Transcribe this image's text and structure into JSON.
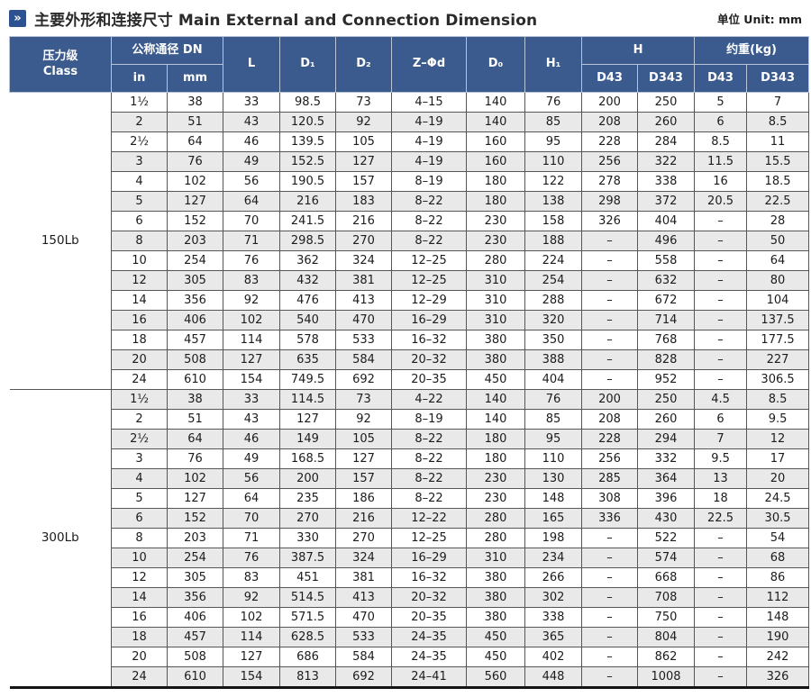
{
  "title": {
    "icon_glyph": "»",
    "text": "主要外形和连接尺寸 Main External and Connection Dimension",
    "unit": "单位 Unit: mm"
  },
  "colors": {
    "header_bg": "#3b5b8e",
    "icon_bg": "#2e5191",
    "stripe": "#e9e9e9",
    "grid_line": "#55565a",
    "bottom_border": "#141414"
  },
  "table": {
    "header": {
      "class_label": "压力级\nClass",
      "dn_label": "公称通径 DN",
      "in": "in",
      "mm": "mm",
      "l": "L",
      "d1": "D₁",
      "d2": "D₂",
      "z_phi_d": "Z–Φd",
      "d0": "D₀",
      "h1": "H₁",
      "h_group": "H",
      "weight_group": "约重(kg)",
      "d43": "D43",
      "d343": "D343"
    },
    "column_keys": [
      "in",
      "mm",
      "L",
      "D1",
      "D2",
      "Z-phi-d",
      "D0",
      "H1",
      "H-D43",
      "H-D343",
      "weight-D43",
      "weight-D343"
    ],
    "sections": [
      {
        "class_label": "150Lb",
        "rows": [
          [
            "1½",
            "38",
            "33",
            "98.5",
            "73",
            "4–15",
            "140",
            "76",
            "200",
            "250",
            "5",
            "7"
          ],
          [
            "2",
            "51",
            "43",
            "120.5",
            "92",
            "4–19",
            "140",
            "85",
            "208",
            "260",
            "6",
            "8.5"
          ],
          [
            "2½",
            "64",
            "46",
            "139.5",
            "105",
            "4–19",
            "160",
            "95",
            "228",
            "284",
            "8.5",
            "11"
          ],
          [
            "3",
            "76",
            "49",
            "152.5",
            "127",
            "4–19",
            "160",
            "110",
            "256",
            "322",
            "11.5",
            "15.5"
          ],
          [
            "4",
            "102",
            "56",
            "190.5",
            "157",
            "8–19",
            "180",
            "122",
            "278",
            "338",
            "16",
            "18.5"
          ],
          [
            "5",
            "127",
            "64",
            "216",
            "183",
            "8–22",
            "180",
            "138",
            "298",
            "372",
            "20.5",
            "22.5"
          ],
          [
            "6",
            "152",
            "70",
            "241.5",
            "216",
            "8–22",
            "230",
            "158",
            "326",
            "404",
            "–",
            "28"
          ],
          [
            "8",
            "203",
            "71",
            "298.5",
            "270",
            "8–22",
            "230",
            "188",
            "–",
            "496",
            "–",
            "50"
          ],
          [
            "10",
            "254",
            "76",
            "362",
            "324",
            "12–25",
            "280",
            "224",
            "–",
            "558",
            "–",
            "64"
          ],
          [
            "12",
            "305",
            "83",
            "432",
            "381",
            "12–25",
            "310",
            "254",
            "–",
            "632",
            "–",
            "80"
          ],
          [
            "14",
            "356",
            "92",
            "476",
            "413",
            "12–29",
            "310",
            "288",
            "–",
            "672",
            "–",
            "104"
          ],
          [
            "16",
            "406",
            "102",
            "540",
            "470",
            "16–29",
            "310",
            "320",
            "–",
            "714",
            "–",
            "137.5"
          ],
          [
            "18",
            "457",
            "114",
            "578",
            "533",
            "16–32",
            "380",
            "350",
            "–",
            "768",
            "–",
            "177.5"
          ],
          [
            "20",
            "508",
            "127",
            "635",
            "584",
            "20–32",
            "380",
            "388",
            "–",
            "828",
            "–",
            "227"
          ],
          [
            "24",
            "610",
            "154",
            "749.5",
            "692",
            "20–35",
            "450",
            "404",
            "–",
            "952",
            "–",
            "306.5"
          ]
        ]
      },
      {
        "class_label": "300Lb",
        "rows": [
          [
            "1½",
            "38",
            "33",
            "114.5",
            "73",
            "4–22",
            "140",
            "76",
            "200",
            "250",
            "4.5",
            "8.5"
          ],
          [
            "2",
            "51",
            "43",
            "127",
            "92",
            "8–19",
            "140",
            "85",
            "208",
            "260",
            "6",
            "9.5"
          ],
          [
            "2½",
            "64",
            "46",
            "149",
            "105",
            "8–22",
            "180",
            "95",
            "228",
            "294",
            "7",
            "12"
          ],
          [
            "3",
            "76",
            "49",
            "168.5",
            "127",
            "8–22",
            "180",
            "110",
            "256",
            "332",
            "9.5",
            "17"
          ],
          [
            "4",
            "102",
            "56",
            "200",
            "157",
            "8–22",
            "230",
            "130",
            "285",
            "364",
            "13",
            "20"
          ],
          [
            "5",
            "127",
            "64",
            "235",
            "186",
            "8–22",
            "230",
            "148",
            "308",
            "396",
            "18",
            "24.5"
          ],
          [
            "6",
            "152",
            "70",
            "270",
            "216",
            "12–22",
            "280",
            "165",
            "336",
            "430",
            "22.5",
            "30.5"
          ],
          [
            "8",
            "203",
            "71",
            "330",
            "270",
            "12–25",
            "280",
            "198",
            "–",
            "522",
            "–",
            "54"
          ],
          [
            "10",
            "254",
            "76",
            "387.5",
            "324",
            "16–29",
            "310",
            "234",
            "–",
            "574",
            "–",
            "68"
          ],
          [
            "12",
            "305",
            "83",
            "451",
            "381",
            "16–32",
            "380",
            "266",
            "–",
            "668",
            "–",
            "86"
          ],
          [
            "14",
            "356",
            "92",
            "514.5",
            "413",
            "20–32",
            "380",
            "302",
            "–",
            "708",
            "–",
            "112"
          ],
          [
            "16",
            "406",
            "102",
            "571.5",
            "470",
            "20–35",
            "380",
            "338",
            "–",
            "750",
            "–",
            "148"
          ],
          [
            "18",
            "457",
            "114",
            "628.5",
            "533",
            "24–35",
            "450",
            "365",
            "–",
            "804",
            "–",
            "190"
          ],
          [
            "20",
            "508",
            "127",
            "686",
            "584",
            "24–35",
            "450",
            "402",
            "–",
            "862",
            "–",
            "242"
          ],
          [
            "24",
            "610",
            "154",
            "813",
            "692",
            "24–41",
            "560",
            "448",
            "–",
            "1008",
            "–",
            "326"
          ]
        ]
      }
    ]
  }
}
